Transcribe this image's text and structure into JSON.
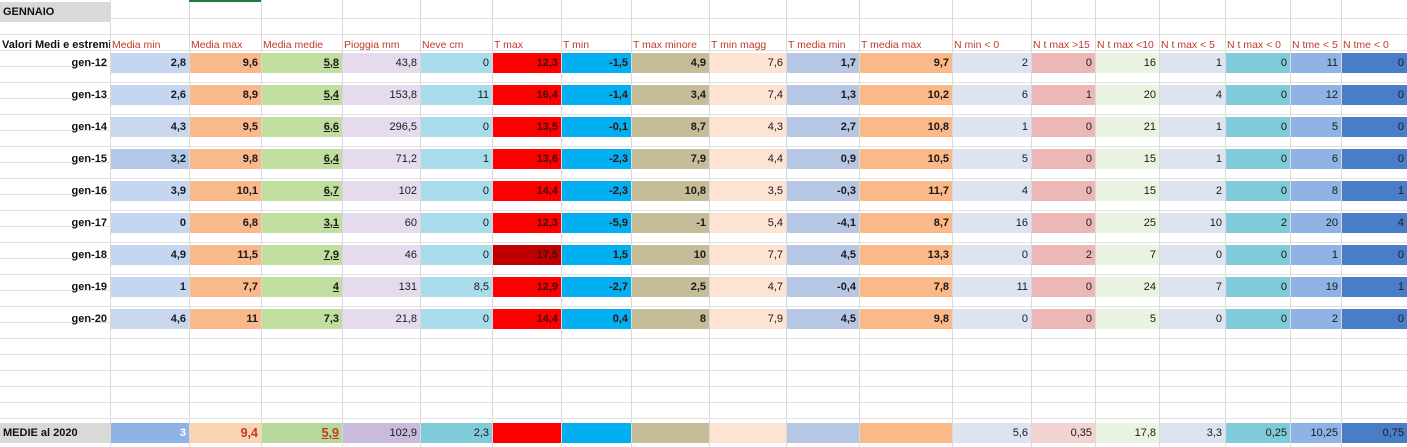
{
  "title": "GENNAIO",
  "first_header": "Valori Medi e estremi",
  "headers": [
    "Media min",
    "Media max",
    "Media medie",
    "Pioggia mm",
    "Neve cm",
    "T max",
    "T min",
    "T max minore",
    "T min magg",
    "T media min",
    "T media max",
    "N min < 0",
    "N t max >15",
    "N t max <10",
    "N t max < 5",
    "N t max < 0",
    "N tme < 5",
    "N tme < 0"
  ],
  "rows": [
    {
      "label": "gen-12",
      "values": [
        "2,8",
        "9,6",
        "5,8",
        "43,8",
        "0",
        "12,3",
        "-1,5",
        "4,9",
        "7,6",
        "1,7",
        "9,7",
        "2",
        "0",
        "16",
        "1",
        "0",
        "11",
        "0"
      ]
    },
    {
      "label": "gen-13",
      "values": [
        "2,6",
        "8,9",
        "5,4",
        "153,8",
        "11",
        "16,4",
        "-1,4",
        "3,4",
        "7,4",
        "1,3",
        "10,2",
        "6",
        "1",
        "20",
        "4",
        "0",
        "12",
        "0"
      ]
    },
    {
      "label": "gen-14",
      "values": [
        "4,3",
        "9,5",
        "6,6",
        "296,5",
        "0",
        "13,5",
        "-0,1",
        "8,7",
        "4,3",
        "2,7",
        "10,8",
        "1",
        "0",
        "21",
        "1",
        "0",
        "5",
        "0"
      ]
    },
    {
      "label": "gen-15",
      "values": [
        "3,2",
        "9,8",
        "6,4",
        "71,2",
        "1",
        "13,6",
        "-2,3",
        "7,9",
        "4,4",
        "0,9",
        "10,5",
        "5",
        "0",
        "15",
        "1",
        "0",
        "6",
        "0"
      ]
    },
    {
      "label": "gen-16",
      "values": [
        "3,9",
        "10,1",
        "6,7",
        "102",
        "0",
        "14,4",
        "-2,3",
        "10,8",
        "3,5",
        "-0,3",
        "11,7",
        "4",
        "0",
        "15",
        "2",
        "0",
        "8",
        "1"
      ]
    },
    {
      "label": "gen-17",
      "values": [
        "0",
        "6,8",
        "3,1",
        "60",
        "0",
        "12,3",
        "-5,9",
        "-1",
        "5,4",
        "-4,1",
        "8,7",
        "16",
        "0",
        "25",
        "10",
        "2",
        "20",
        "4"
      ]
    },
    {
      "label": "gen-18",
      "values": [
        "4,9",
        "11,5",
        "7,9",
        "46",
        "0",
        "17,5",
        "1,5",
        "10",
        "7,7",
        "4,5",
        "13,3",
        "0",
        "2",
        "7",
        "0",
        "0",
        "1",
        "0"
      ]
    },
    {
      "label": "gen-19",
      "values": [
        "1",
        "7,7",
        "4",
        "131",
        "8,5",
        "12,9",
        "-2,7",
        "2,5",
        "4,7",
        "-0,4",
        "7,8",
        "11",
        "0",
        "24",
        "7",
        "0",
        "19",
        "1"
      ]
    },
    {
      "label": "gen-20",
      "values": [
        "4,6",
        "11",
        "7,3",
        "21,8",
        "0",
        "14,4",
        "0,4",
        "8",
        "7,9",
        "4,5",
        "9,8",
        "0",
        "0",
        "5",
        "0",
        "0",
        "2",
        "0"
      ]
    }
  ],
  "summary": {
    "label": "MEDIE al 2020",
    "values": [
      "3",
      "9,4",
      "5,9",
      "102,9",
      "2,3",
      "",
      "",
      "",
      "",
      "",
      "",
      "5,6",
      "0,35",
      "17,8",
      "3,3",
      "0,25",
      "10,25",
      "0,75"
    ]
  }
}
